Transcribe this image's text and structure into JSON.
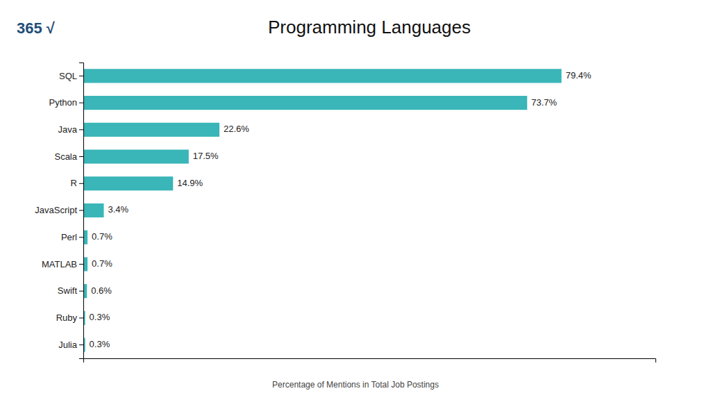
{
  "chart_data": {
    "type": "bar",
    "orientation": "horizontal",
    "title": "Programming Languages",
    "xlabel": "Percentage of Mentions in Total Job Postings",
    "annotations": [
      "365",
      "√"
    ],
    "categories": [
      "SQL",
      "Python",
      "Java",
      "Scala",
      "R",
      "JavaScript",
      "Perl",
      "MATLAB",
      "Swift",
      "Ruby",
      "Julia"
    ],
    "values": [
      79.4,
      73.7,
      22.6,
      17.5,
      14.9,
      3.4,
      0.7,
      0.7,
      0.6,
      0.3,
      0.3
    ],
    "value_labels": [
      "79.4%",
      "73.7%",
      "22.6%",
      "17.5%",
      "14.9%",
      "3.4%",
      "0.7%",
      "0.7%",
      "0.6%",
      "0.3%",
      "0.3%"
    ],
    "data_labels": true,
    "color": "#3ab5b8",
    "xlim": [
      0,
      95
    ],
    "xticks": [],
    "tick_labels": "y",
    "grid": false
  }
}
